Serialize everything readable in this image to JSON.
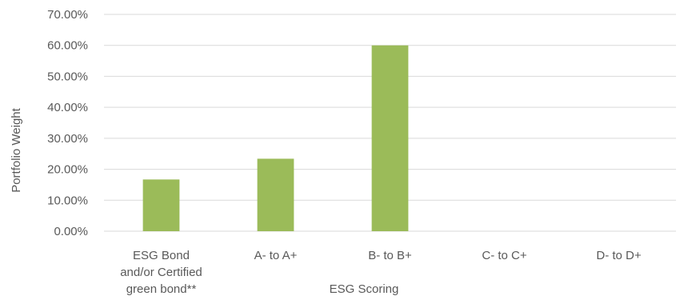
{
  "chart_data": {
    "type": "bar",
    "title": "",
    "xlabel": "ESG Scoring",
    "ylabel": "Portfolio Weight",
    "categories": [
      [
        "ESG Bond",
        "and/or Certified",
        "green bond**"
      ],
      [
        "A- to A+"
      ],
      [
        "B- to B+"
      ],
      [
        "C- to C+"
      ],
      [
        "D- to D+"
      ]
    ],
    "series": [
      {
        "values": [
          16.7,
          23.4,
          60.0,
          0,
          0
        ]
      }
    ],
    "ylim": [
      0,
      70
    ],
    "yticks": [
      {
        "value": 0,
        "label": "0.00%"
      },
      {
        "value": 10,
        "label": "10.00%"
      },
      {
        "value": 20,
        "label": "20.00%"
      },
      {
        "value": 30,
        "label": "30.00%"
      },
      {
        "value": 40,
        "label": "40.00%"
      },
      {
        "value": 50,
        "label": "50.00%"
      },
      {
        "value": 60,
        "label": "60.00%"
      },
      {
        "value": 70,
        "label": "70.00%"
      }
    ],
    "grid": true,
    "legend": "none",
    "colors": {
      "bar": "#9bbb59",
      "grid": "#d9d9d9",
      "text": "#595959"
    }
  }
}
